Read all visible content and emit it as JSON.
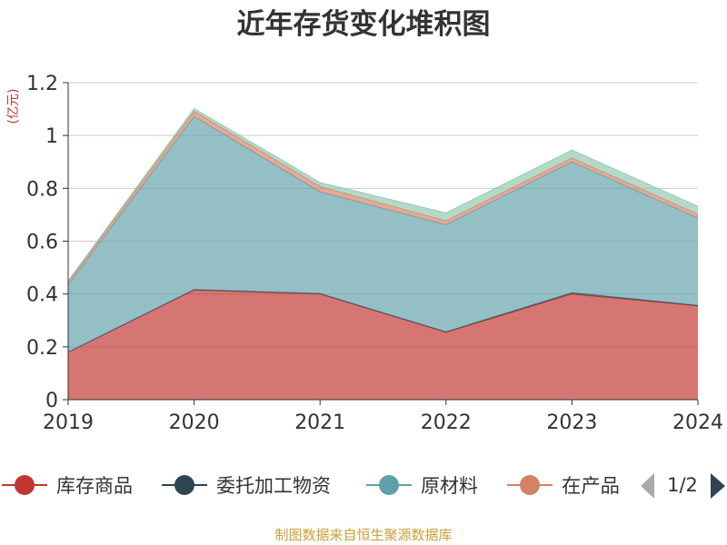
{
  "chart_data": {
    "type": "area",
    "stacked": true,
    "title": "近年存货变化堆积图",
    "unit_label": "(亿元)",
    "x": [
      "2019",
      "2020",
      "2021",
      "2022",
      "2023",
      "2024"
    ],
    "ylim": [
      0,
      1.2
    ],
    "yticks": [
      "0",
      "0.2",
      "0.4",
      "0.6",
      "0.8",
      "1",
      "1.2"
    ],
    "ytick_values": [
      0,
      0.2,
      0.4,
      0.6,
      0.8,
      1.0,
      1.2
    ],
    "grid": true,
    "legend_position": "bottom",
    "series": [
      {
        "name": "库存商品",
        "color": "#c23531",
        "values": [
          0.18,
          0.415,
          0.4,
          0.255,
          0.4,
          0.355
        ]
      },
      {
        "name": "委托加工物资",
        "color": "#2f4554",
        "values": [
          0.0,
          0.002,
          0.002,
          0.002,
          0.005,
          0.002
        ]
      },
      {
        "name": "原材料",
        "color": "#61a0a8",
        "values": [
          0.255,
          0.655,
          0.385,
          0.405,
          0.495,
          0.33
        ]
      },
      {
        "name": "在产品",
        "color": "#d48265",
        "values": [
          0.01,
          0.02,
          0.02,
          0.015,
          0.015,
          0.015
        ]
      },
      {
        "name": "",
        "color": "#91c7ae",
        "values": [
          0.005,
          0.01,
          0.015,
          0.03,
          0.03,
          0.03
        ]
      }
    ],
    "legend_visible_count": 4
  },
  "legend_pager": {
    "label": "1/2"
  },
  "source": "制图数据来自恒生聚源数据库"
}
